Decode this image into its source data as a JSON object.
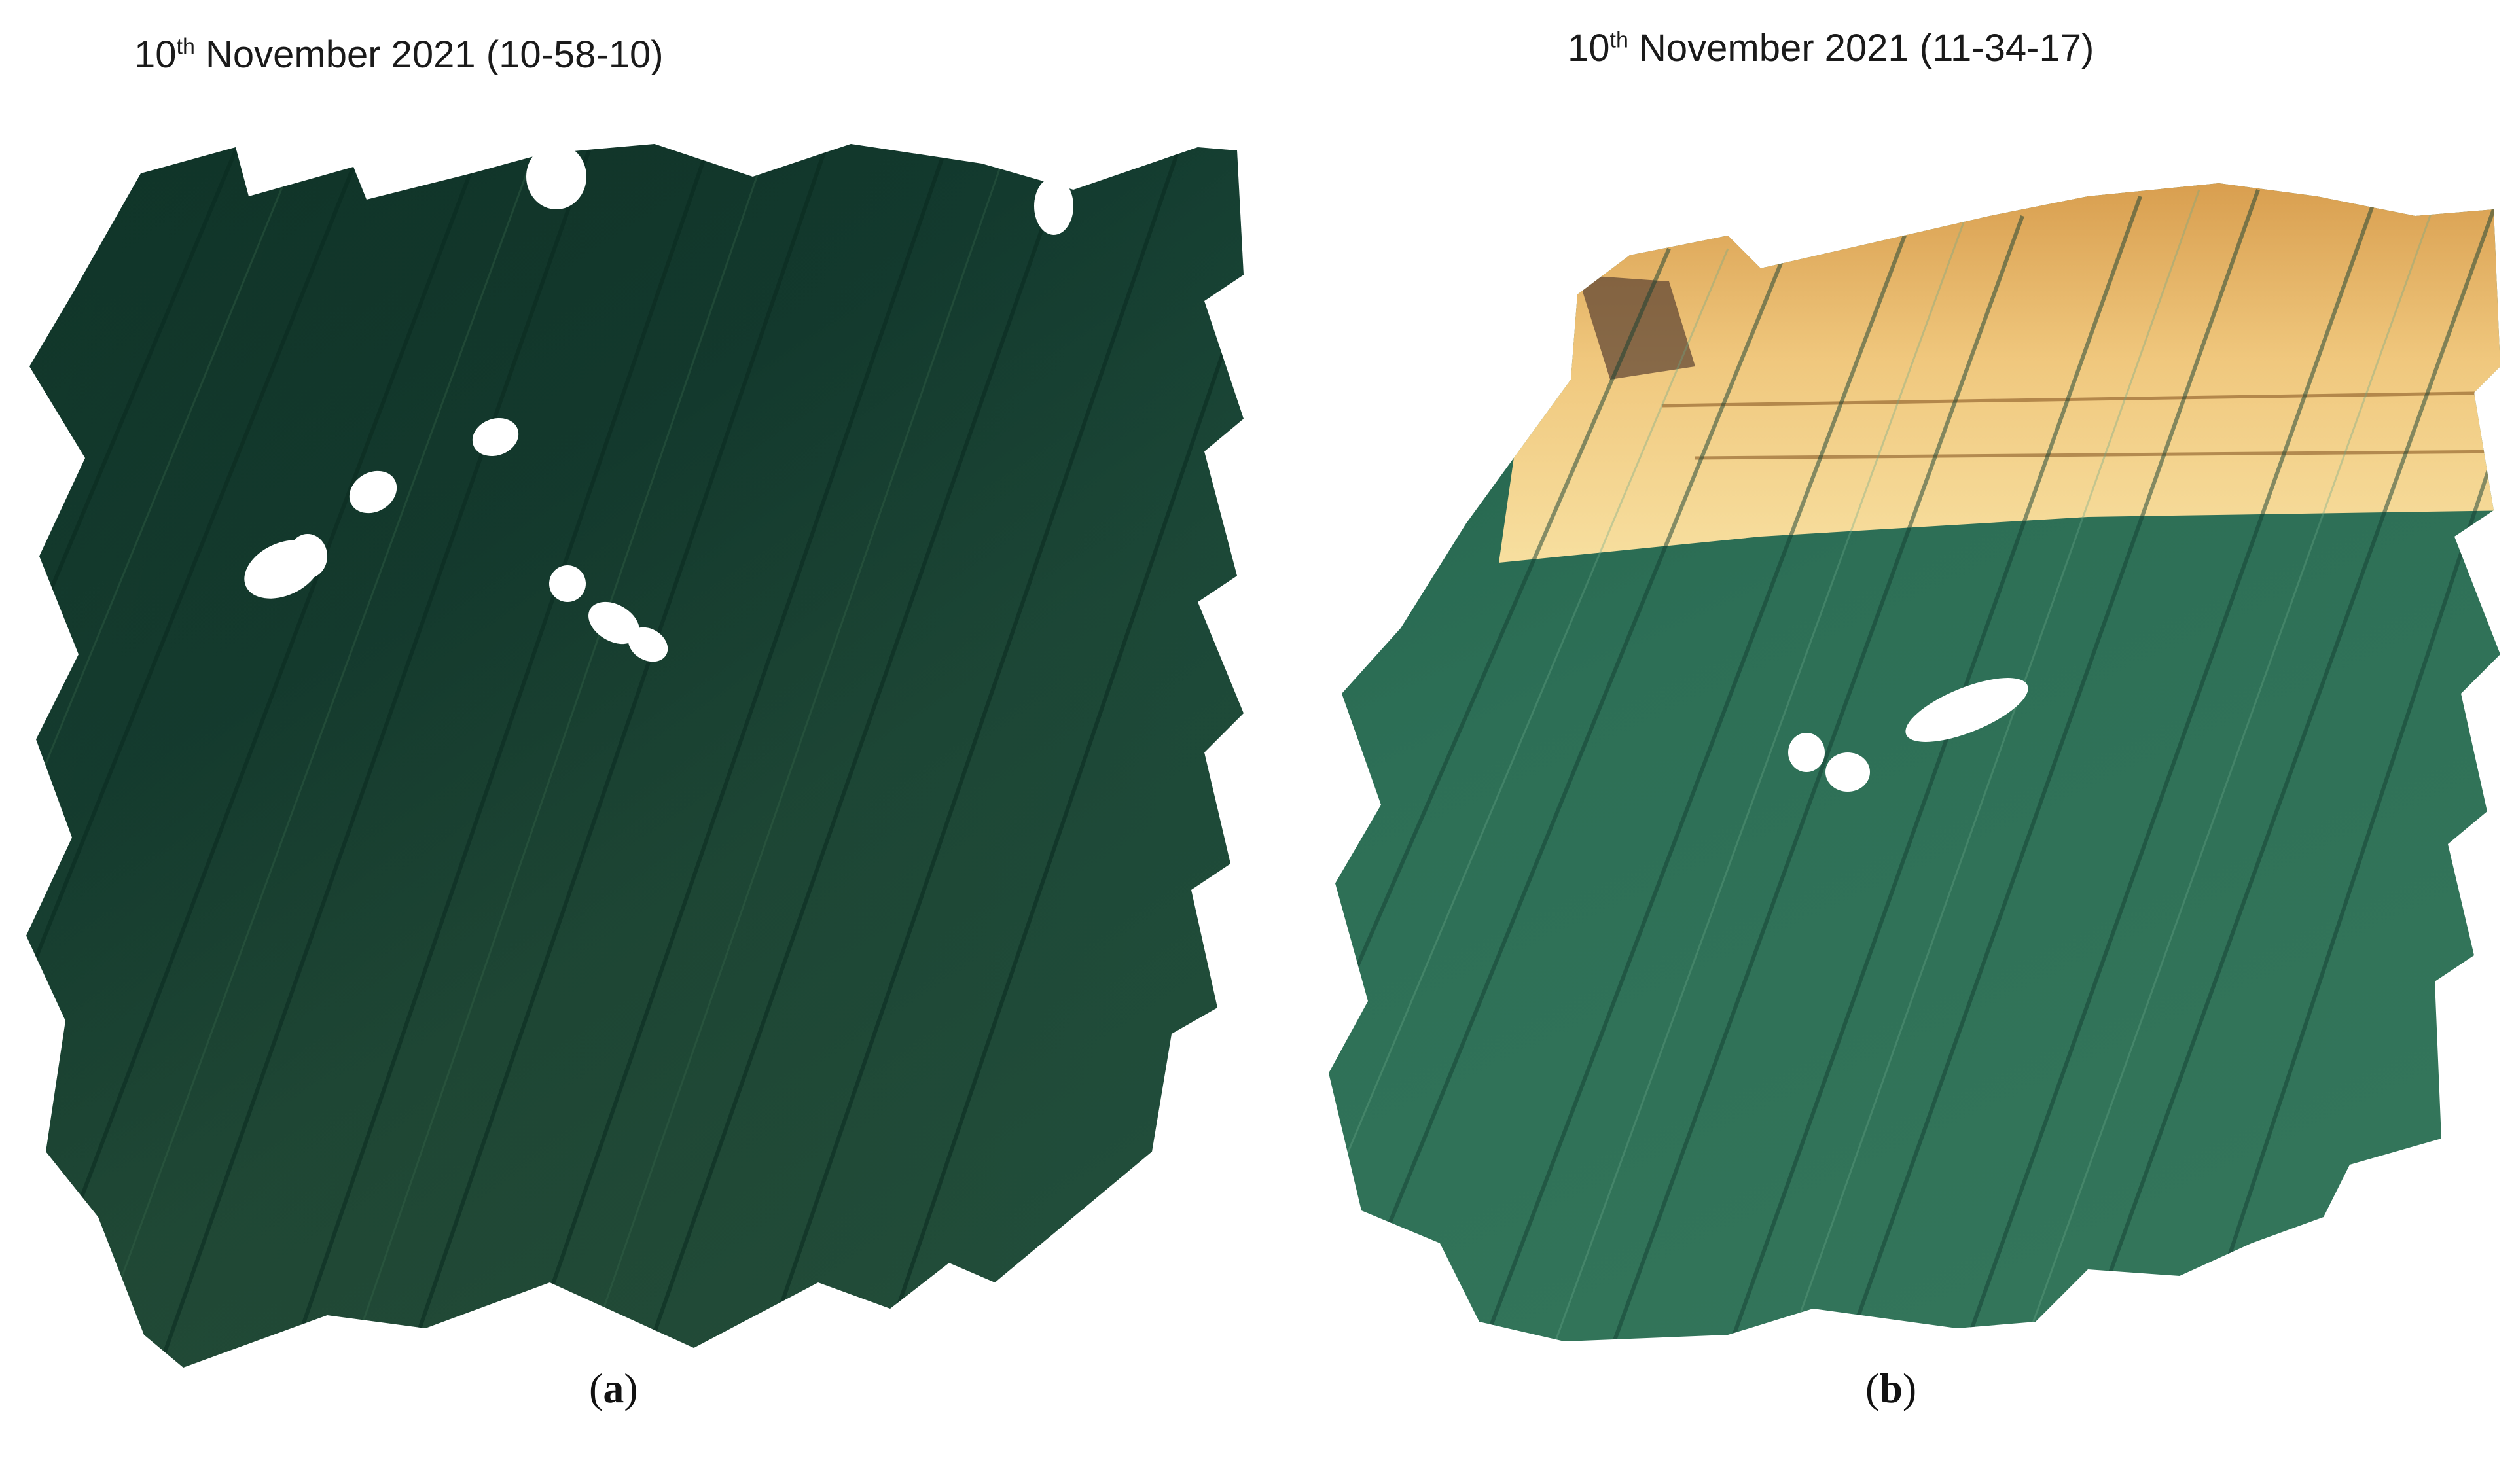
{
  "panels": [
    {
      "title_day": "10",
      "title_suffix": "th",
      "title_rest": " November 2021 (10-58-10)",
      "caption_open": "(",
      "caption_letter": "a",
      "caption_close": ")",
      "colors": {
        "water_dark": "#123a2e",
        "water_mid": "#1f4a38",
        "water_light": "#2f5f44"
      }
    },
    {
      "title_day": "10",
      "title_suffix": "th",
      "title_rest": " November 2021 (11-34-17)",
      "caption_open": "(",
      "caption_letter": "b",
      "caption_close": ")",
      "colors": {
        "sand": "#e3b25d",
        "sand_light": "#f5d997",
        "water": "#2f6f57",
        "water_light": "#4f8f6f"
      }
    }
  ]
}
